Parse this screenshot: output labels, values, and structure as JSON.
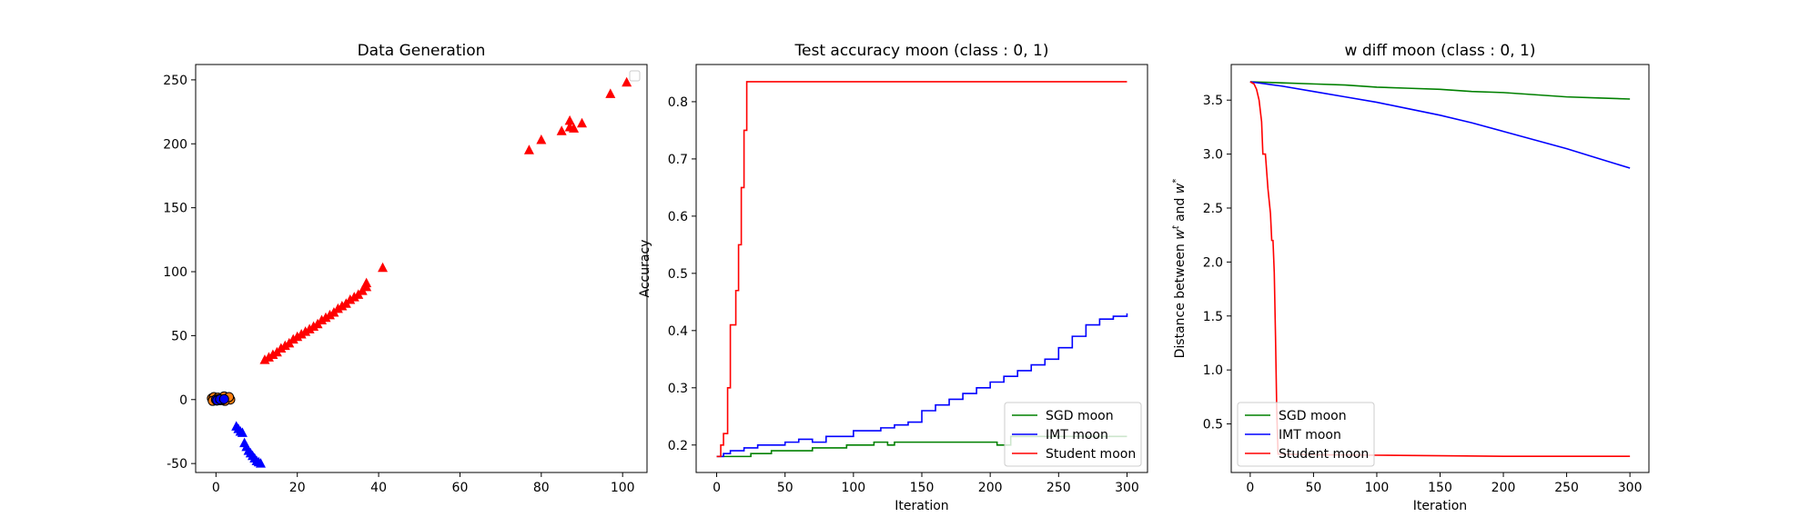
{
  "chart_data": [
    {
      "type": "scatter",
      "title": "Data Generation",
      "xlabel": "",
      "ylabel": "",
      "xlim": [
        -5,
        106
      ],
      "ylim": [
        -57,
        262
      ],
      "xticks": [
        0,
        20,
        40,
        60,
        80,
        100
      ],
      "yticks": [
        -50,
        0,
        50,
        100,
        150,
        200,
        250
      ],
      "grid": false,
      "legend": {
        "placement": "top-right",
        "entries": []
      },
      "series": [
        {
          "marker": "triangle",
          "color": "#ff0000",
          "points": [
            [
              12,
              31
            ],
            [
              13,
              33
            ],
            [
              14,
              35
            ],
            [
              15,
              37
            ],
            [
              16,
              40
            ],
            [
              17,
              42
            ],
            [
              18,
              44
            ],
            [
              19,
              47
            ],
            [
              20,
              49
            ],
            [
              21,
              51
            ],
            [
              22,
              53
            ],
            [
              23,
              55
            ],
            [
              24,
              57
            ],
            [
              25,
              59
            ],
            [
              26,
              62
            ],
            [
              27,
              64
            ],
            [
              28,
              66
            ],
            [
              29,
              68
            ],
            [
              30,
              71
            ],
            [
              31,
              73
            ],
            [
              32,
              75
            ],
            [
              33,
              78
            ],
            [
              34,
              80
            ],
            [
              35,
              82
            ],
            [
              36,
              85
            ],
            [
              37,
              88
            ],
            [
              37,
              91
            ],
            [
              41,
              103
            ],
            [
              77,
              195
            ],
            [
              80,
              203
            ],
            [
              85,
              210
            ],
            [
              87,
              213
            ],
            [
              87,
              218
            ],
            [
              88,
              212
            ],
            [
              90,
              216
            ],
            [
              97,
              239
            ],
            [
              101,
              248
            ]
          ]
        },
        {
          "marker": "triangle",
          "color": "#0000ff",
          "points": [
            [
              5,
              -21
            ],
            [
              5.5,
              -23
            ],
            [
              6,
              -25
            ],
            [
              6.5,
              -26
            ],
            [
              7,
              -34
            ],
            [
              7.5,
              -37
            ],
            [
              8,
              -40
            ],
            [
              8.5,
              -42
            ],
            [
              9,
              -44
            ],
            [
              9.5,
              -46
            ],
            [
              10,
              -48
            ],
            [
              10.5,
              -49
            ],
            [
              11,
              -50
            ]
          ]
        },
        {
          "marker": "circle",
          "color": "#ff7f0e",
          "points": [
            [
              -1,
              1
            ],
            [
              -0.5,
              2
            ],
            [
              0,
              0
            ],
            [
              0.5,
              1.5
            ],
            [
              1,
              -0.5
            ],
            [
              1.5,
              1
            ],
            [
              2,
              2.5
            ],
            [
              2.5,
              0.5
            ],
            [
              3,
              1.5
            ],
            [
              3.5,
              0
            ],
            [
              -0.8,
              -1
            ],
            [
              0.2,
              -0.8
            ],
            [
              1.2,
              0.3
            ],
            [
              2.2,
              -1
            ],
            [
              3.2,
              2
            ]
          ]
        },
        {
          "marker": "circle",
          "color": "#0000ff",
          "points": [
            [
              0,
              0
            ],
            [
              0.8,
              0.5
            ],
            [
              1.5,
              -0.3
            ],
            [
              0.3,
              -0.6
            ],
            [
              1,
              0.2
            ],
            [
              2,
              0.4
            ]
          ]
        }
      ]
    },
    {
      "type": "line",
      "title": "Test accuracy moon (class : 0, 1)",
      "xlabel": "Iteration",
      "ylabel": "Accuracy",
      "xlim": [
        -15,
        315
      ],
      "ylim": [
        0.152,
        0.865
      ],
      "xticks": [
        0,
        50,
        100,
        150,
        200,
        250,
        300
      ],
      "yticks": [
        0.2,
        0.3,
        0.4,
        0.5,
        0.6,
        0.7,
        0.8
      ],
      "grid": false,
      "legend": {
        "placement": "lower-right"
      },
      "series": [
        {
          "name": "SGD moon",
          "color": "#008000",
          "x": [
            0,
            10,
            25,
            40,
            55,
            70,
            85,
            95,
            100,
            110,
            115,
            125,
            130,
            150,
            170,
            190,
            200,
            205,
            215,
            230,
            250,
            270,
            300
          ],
          "y": [
            0.18,
            0.18,
            0.185,
            0.19,
            0.19,
            0.195,
            0.195,
            0.2,
            0.2,
            0.2,
            0.205,
            0.2,
            0.205,
            0.205,
            0.205,
            0.205,
            0.205,
            0.2,
            0.215,
            0.215,
            0.215,
            0.215,
            0.215
          ]
        },
        {
          "name": "IMT moon",
          "color": "#0000ff",
          "x": [
            0,
            5,
            10,
            20,
            30,
            40,
            50,
            60,
            70,
            80,
            90,
            100,
            110,
            120,
            130,
            140,
            150,
            160,
            170,
            180,
            190,
            200,
            210,
            220,
            230,
            240,
            250,
            260,
            270,
            280,
            290,
            300
          ],
          "y": [
            0.18,
            0.185,
            0.19,
            0.195,
            0.2,
            0.2,
            0.205,
            0.21,
            0.205,
            0.215,
            0.215,
            0.225,
            0.225,
            0.23,
            0.235,
            0.24,
            0.26,
            0.27,
            0.28,
            0.29,
            0.3,
            0.31,
            0.32,
            0.33,
            0.34,
            0.35,
            0.37,
            0.39,
            0.41,
            0.42,
            0.425,
            0.43
          ]
        },
        {
          "name": "Student moon",
          "color": "#ff0000",
          "x": [
            0,
            3,
            5,
            8,
            10,
            12,
            14,
            16,
            18,
            20,
            22,
            300
          ],
          "y": [
            0.18,
            0.2,
            0.22,
            0.3,
            0.41,
            0.41,
            0.47,
            0.55,
            0.65,
            0.75,
            0.835,
            0.835
          ]
        }
      ]
    },
    {
      "type": "line",
      "title": "w diff moon (class : 0, 1)",
      "xlabel": "Iteration",
      "ylabel": "Distance between w^t and w^*",
      "ylabel_parts": {
        "pre": "Distance between ",
        "w1": "w",
        "sup1": "t",
        "mid": " and ",
        "w2": "w",
        "sup2": "*"
      },
      "xlim": [
        -15,
        315
      ],
      "ylim": [
        0.05,
        3.83
      ],
      "xticks": [
        0,
        50,
        100,
        150,
        200,
        250,
        300
      ],
      "yticks": [
        0.5,
        1.0,
        1.5,
        2.0,
        2.5,
        3.0,
        3.5
      ],
      "grid": false,
      "legend": {
        "placement": "lower-left"
      },
      "series": [
        {
          "name": "SGD moon",
          "color": "#008000",
          "x": [
            0,
            25,
            50,
            75,
            100,
            125,
            150,
            175,
            200,
            225,
            250,
            275,
            300
          ],
          "y": [
            3.67,
            3.66,
            3.65,
            3.64,
            3.62,
            3.61,
            3.6,
            3.58,
            3.57,
            3.55,
            3.53,
            3.52,
            3.51
          ]
        },
        {
          "name": "IMT moon",
          "color": "#0000ff",
          "x": [
            0,
            25,
            50,
            75,
            100,
            125,
            150,
            175,
            200,
            225,
            250,
            275,
            300
          ],
          "y": [
            3.67,
            3.63,
            3.58,
            3.53,
            3.48,
            3.42,
            3.36,
            3.29,
            3.21,
            3.13,
            3.05,
            2.96,
            2.87
          ]
        },
        {
          "name": "Student moon",
          "color": "#ff0000",
          "x": [
            0,
            3,
            5,
            7,
            9,
            10,
            11,
            12,
            14,
            16,
            17,
            18,
            19,
            20,
            21,
            22,
            23,
            50,
            100,
            150,
            200,
            250,
            300
          ],
          "y": [
            3.67,
            3.65,
            3.6,
            3.5,
            3.3,
            3.0,
            3.0,
            3.0,
            2.68,
            2.45,
            2.2,
            2.2,
            1.9,
            1.3,
            0.6,
            0.22,
            0.22,
            0.215,
            0.21,
            0.205,
            0.2,
            0.2,
            0.2
          ]
        }
      ]
    }
  ]
}
